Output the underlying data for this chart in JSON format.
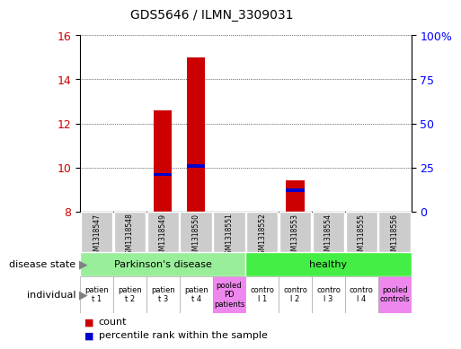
{
  "title": "GDS5646 / ILMN_3309031",
  "samples": [
    "GSM1318547",
    "GSM1318548",
    "GSM1318549",
    "GSM1318550",
    "GSM1318551",
    "GSM1318552",
    "GSM1318553",
    "GSM1318554",
    "GSM1318555",
    "GSM1318556"
  ],
  "count_values": [
    8.0,
    8.0,
    12.6,
    15.0,
    8.0,
    8.0,
    9.4,
    8.0,
    8.0,
    8.0
  ],
  "percentile_values": [
    8.0,
    8.0,
    9.6,
    10.0,
    8.0,
    8.0,
    8.9,
    8.0,
    8.0,
    8.0
  ],
  "ylim_left": [
    8,
    16
  ],
  "ylim_right": [
    0,
    100
  ],
  "yticks_left": [
    8,
    10,
    12,
    14,
    16
  ],
  "yticks_right": [
    0,
    25,
    50,
    75,
    100
  ],
  "ytick_labels_right": [
    "0",
    "25",
    "50",
    "75",
    "100%"
  ],
  "count_color": "#cc0000",
  "percentile_color": "#0000cc",
  "bg_color": "#ffffff",
  "sample_box_color": "#cccccc",
  "disease_pd_color": "#99ee99",
  "disease_healthy_color": "#44ee44",
  "indiv_normal_color": "#ffffff",
  "indiv_pooled_color": "#ee88ee",
  "left_label_disease": "disease state",
  "left_label_individual": "individual",
  "legend_count": "count",
  "legend_percentile": "percentile rank within the sample",
  "indiv_texts": [
    "patien\nt 1",
    "patien\nt 2",
    "patien\nt 3",
    "patien\nt 4",
    "pooled\nPD\npatients",
    "contro\nl 1",
    "contro\nl 2",
    "contro\nl 3",
    "contro\nl 4",
    "pooled\ncontrols"
  ],
  "indiv_pooled_cols": [
    4,
    9
  ]
}
